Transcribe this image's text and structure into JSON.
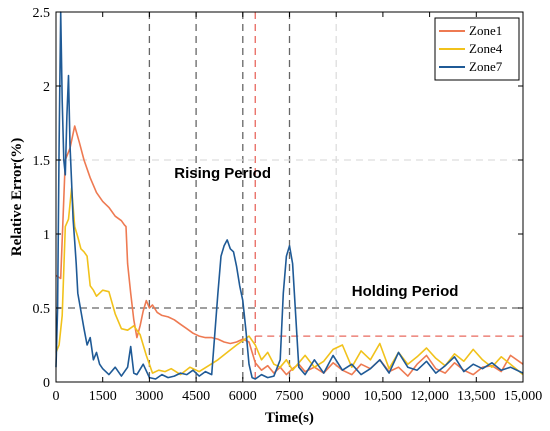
{
  "chart_data": {
    "type": "line",
    "title": "",
    "xlabel": "Time(s)",
    "ylabel": "Relative Error(%)",
    "xlim": [
      0,
      15000
    ],
    "ylim": [
      0,
      2.5
    ],
    "xticks": [
      0,
      1500,
      3000,
      4500,
      6000,
      7500,
      9000,
      10500,
      12000,
      13500,
      15000
    ],
    "xtick_labels": [
      "0",
      "1500",
      "3000",
      "4500",
      "6000",
      "7500",
      "9000",
      "10,500",
      "12,000",
      "13,500",
      "15,000"
    ],
    "yticks": [
      0,
      0.5,
      1,
      1.5,
      2,
      2.5
    ],
    "ytick_labels": [
      "0",
      "0.5",
      "1",
      "1.5",
      "2",
      "2.5"
    ],
    "grid": false,
    "legend_position": "top-right",
    "annotations": [
      {
        "text": "Rising Period",
        "x": 3800,
        "y": 1.38
      },
      {
        "text": "Holding Period",
        "x": 9500,
        "y": 0.58
      }
    ],
    "reference_lines": [
      {
        "orientation": "vertical",
        "x": 3000,
        "color": "#666666",
        "style": "dashed"
      },
      {
        "orientation": "vertical",
        "x": 4500,
        "color": "#666666",
        "style": "dashed"
      },
      {
        "orientation": "vertical",
        "x": 6000,
        "color": "#666666",
        "style": "dashed"
      },
      {
        "orientation": "vertical",
        "x": 7500,
        "color": "#666666",
        "style": "dashed"
      },
      {
        "orientation": "vertical",
        "x": 6400,
        "color": "#e8685e",
        "style": "dashed"
      },
      {
        "orientation": "vertical",
        "x": 9000,
        "color": "#dddddd",
        "style": "dashed"
      },
      {
        "orientation": "horizontal",
        "y": 0.5,
        "x_from": 0,
        "x_to": 15000,
        "color": "#666666",
        "style": "dashed"
      },
      {
        "orientation": "horizontal",
        "y": 1.5,
        "x_from": 0,
        "x_to": 15000,
        "color": "#dddddd",
        "style": "dashed"
      },
      {
        "orientation": "horizontal",
        "y": 0.31,
        "x_from": 6400,
        "x_to": 15000,
        "color": "#e8685e",
        "style": "dashed"
      }
    ],
    "series": [
      {
        "name": "Zone1",
        "color": "#ee7a52",
        "x": [
          0,
          150,
          300,
          450,
          600,
          750,
          900,
          1100,
          1300,
          1500,
          1700,
          1900,
          2100,
          2200,
          2250,
          2300,
          2400,
          2500,
          2600,
          2700,
          2800,
          2900,
          3000,
          3100,
          3250,
          3400,
          3600,
          3800,
          4000,
          4200,
          4400,
          4600,
          4800,
          5000,
          5200,
          5400,
          5600,
          5800,
          6000,
          6200,
          6400,
          6600,
          6800,
          7000,
          7200,
          7400,
          7600,
          7800,
          8000,
          8300,
          8600,
          8900,
          9200,
          9500,
          9800,
          10100,
          10400,
          10700,
          11000,
          11300,
          11600,
          11900,
          12200,
          12500,
          12800,
          13100,
          13400,
          13700,
          14000,
          14300,
          14600,
          15000
        ],
        "y": [
          0.72,
          0.7,
          1.5,
          1.58,
          1.73,
          1.62,
          1.5,
          1.38,
          1.28,
          1.22,
          1.18,
          1.12,
          1.09,
          1.06,
          1.05,
          0.8,
          0.6,
          0.42,
          0.3,
          0.38,
          0.48,
          0.55,
          0.5,
          0.52,
          0.47,
          0.45,
          0.44,
          0.42,
          0.39,
          0.36,
          0.33,
          0.31,
          0.3,
          0.3,
          0.29,
          0.27,
          0.26,
          0.27,
          0.29,
          0.27,
          0.13,
          0.08,
          0.11,
          0.06,
          0.1,
          0.05,
          0.09,
          0.12,
          0.07,
          0.1,
          0.06,
          0.13,
          0.08,
          0.05,
          0.12,
          0.09,
          0.15,
          0.07,
          0.1,
          0.04,
          0.12,
          0.18,
          0.09,
          0.06,
          0.13,
          0.08,
          0.05,
          0.1,
          0.11,
          0.07,
          0.18,
          0.12
        ]
      },
      {
        "name": "Zone4",
        "color": "#f1c21b",
        "x": [
          0,
          100,
          200,
          300,
          400,
          500,
          600,
          700,
          800,
          900,
          1000,
          1100,
          1200,
          1300,
          1400,
          1500,
          1700,
          1900,
          2100,
          2300,
          2500,
          2700,
          2900,
          3100,
          3300,
          3500,
          3700,
          4000,
          4300,
          4600,
          4900,
          5200,
          5500,
          5800,
          6000,
          6200,
          6400,
          6600,
          6800,
          7000,
          7200,
          7400,
          7600,
          7800,
          8000,
          8300,
          8600,
          8900,
          9200,
          9500,
          9800,
          10100,
          10400,
          10700,
          11000,
          11300,
          11600,
          11900,
          12200,
          12500,
          12800,
          13100,
          13400,
          13700,
          14000,
          14300,
          14600,
          15000
        ],
        "y": [
          0.2,
          0.25,
          0.45,
          1.05,
          1.1,
          1.31,
          1.05,
          0.98,
          0.9,
          0.88,
          0.85,
          0.65,
          0.62,
          0.58,
          0.6,
          0.62,
          0.61,
          0.46,
          0.36,
          0.35,
          0.38,
          0.32,
          0.18,
          0.06,
          0.08,
          0.07,
          0.09,
          0.05,
          0.1,
          0.07,
          0.11,
          0.15,
          0.2,
          0.25,
          0.28,
          0.31,
          0.25,
          0.15,
          0.2,
          0.12,
          0.1,
          0.15,
          0.08,
          0.13,
          0.18,
          0.1,
          0.14,
          0.22,
          0.25,
          0.1,
          0.21,
          0.15,
          0.26,
          0.09,
          0.2,
          0.12,
          0.17,
          0.23,
          0.16,
          0.11,
          0.19,
          0.14,
          0.22,
          0.15,
          0.1,
          0.17,
          0.12,
          0.05
        ]
      },
      {
        "name": "Zone7",
        "color": "#1f5a96",
        "x": [
          0,
          50,
          100,
          150,
          200,
          250,
          300,
          350,
          400,
          450,
          500,
          550,
          600,
          650,
          700,
          800,
          900,
          1000,
          1100,
          1200,
          1300,
          1400,
          1500,
          1700,
          1900,
          2100,
          2300,
          2400,
          2500,
          2600,
          2800,
          3000,
          3200,
          3400,
          3600,
          3800,
          4000,
          4200,
          4400,
          4600,
          4800,
          5000,
          5200,
          5300,
          5400,
          5500,
          5600,
          5700,
          5800,
          5900,
          6000,
          6100,
          6200,
          6300,
          6400,
          6600,
          6800,
          7000,
          7200,
          7300,
          7400,
          7500,
          7600,
          7700,
          7800,
          8000,
          8300,
          8600,
          8900,
          9200,
          9500,
          9800,
          10100,
          10400,
          10700,
          11000,
          11300,
          11600,
          11900,
          12200,
          12500,
          12800,
          13100,
          13400,
          13700,
          14000,
          14300,
          14600,
          15000
        ],
        "y": [
          0.1,
          0.5,
          1.6,
          2.5,
          1.9,
          1.5,
          1.4,
          1.8,
          2.07,
          1.6,
          1.35,
          1.1,
          0.95,
          0.8,
          0.6,
          0.48,
          0.36,
          0.25,
          0.3,
          0.15,
          0.2,
          0.12,
          0.09,
          0.05,
          0.1,
          0.04,
          0.1,
          0.24,
          0.06,
          0.05,
          0.12,
          0.03,
          0.02,
          0.05,
          0.03,
          0.04,
          0.06,
          0.05,
          0.08,
          0.04,
          0.07,
          0.05,
          0.6,
          0.85,
          0.92,
          0.96,
          0.9,
          0.88,
          0.78,
          0.65,
          0.55,
          0.35,
          0.12,
          0.03,
          0.02,
          0.05,
          0.03,
          0.04,
          0.15,
          0.6,
          0.85,
          0.92,
          0.8,
          0.45,
          0.1,
          0.05,
          0.15,
          0.06,
          0.18,
          0.08,
          0.12,
          0.05,
          0.09,
          0.15,
          0.06,
          0.2,
          0.1,
          0.08,
          0.14,
          0.06,
          0.11,
          0.17,
          0.07,
          0.12,
          0.09,
          0.13,
          0.08,
          0.1,
          0.06
        ]
      }
    ]
  }
}
